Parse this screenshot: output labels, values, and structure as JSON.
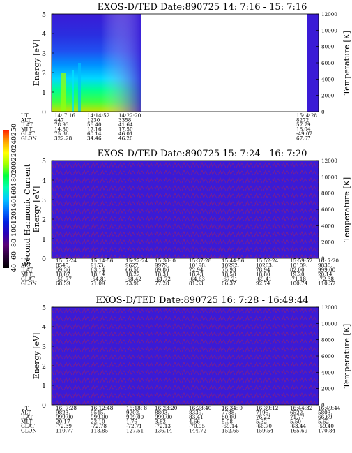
{
  "colors": {
    "plot_background": "#3a1bd6",
    "noise_red": "#c0203e",
    "colorbar_stops": [
      "#000000",
      "#2a0038",
      "#5a0078",
      "#2a00b8",
      "#0020e0",
      "#0070ff",
      "#00c8ff",
      "#00ffb0",
      "#00ff40",
      "#a0ff00",
      "#ffff00",
      "#ffa000",
      "#ff2000"
    ]
  },
  "colorbar": {
    "label": "Second Harmonic Current",
    "ticks": [
      "40",
      "60",
      "80",
      "100",
      "120",
      "140",
      "160",
      "180",
      "200",
      "220",
      "240",
      "250"
    ]
  },
  "chart_data": [
    {
      "type": "heatmap",
      "title": "EXOS-D/TED   Date:890725  14: 7:16 - 15: 7:16",
      "ylabel_left": "Energy [eV]",
      "ylabel_right": "Temperature [K]",
      "ylim_left": [
        0,
        5
      ],
      "ylim_right": [
        0,
        12000
      ],
      "yticks_left": [
        "0",
        "1",
        "2",
        "3",
        "4",
        "5"
      ],
      "yticks_right": [
        "0",
        "2000",
        "4000",
        "6000",
        "8000",
        "10000",
        "12000"
      ],
      "data_extent": "first ~26% of time range plus final column; gap in between",
      "orbit_rows": [
        {
          "label": "UT",
          "values": [
            "14: 7:16",
            "14:14:52",
            "14:22:20",
            "15: 4:28"
          ]
        },
        {
          "label": "ALT",
          "values": [
            "447",
            "1230",
            "3358",
            "8272"
          ]
        },
        {
          "label": "ILAT",
          "values": [
            "78.93",
            "56.40",
            "41.64",
            "57.79"
          ]
        },
        {
          "label": "MLT",
          "values": [
            "14.30",
            "17.16",
            "17.50",
            "18.04"
          ]
        },
        {
          "label": "GLAT",
          "values": [
            "75.36",
            "60.14",
            "46.01",
            "-49.07"
          ]
        },
        {
          "label": "GLON",
          "values": [
            "322.28",
            "34.46",
            "46.20",
            "67.67"
          ]
        }
      ]
    },
    {
      "type": "heatmap",
      "title": "EXOS-D/TED   Date:890725  15: 7:24 - 16: 7:20",
      "ylabel_left": "Energy [eV]",
      "ylabel_right": "Temperature [K]",
      "ylim_left": [
        0,
        5
      ],
      "ylim_right": [
        0,
        12000
      ],
      "yticks_left": [
        "0",
        "1",
        "2",
        "3",
        "4",
        "5"
      ],
      "yticks_right": [
        "0",
        "2000",
        "4000",
        "6000",
        "8000",
        "10000",
        "12000"
      ],
      "orbit_rows": [
        {
          "label": "UT",
          "values": [
            "15: 7:24",
            "15:14:56",
            "15:22:24",
            "15:30: 0",
            "15:37:28",
            "15:44:56",
            "15:52:24",
            "15:59:52",
            "16: 7:20"
          ]
        },
        {
          "label": "ALT",
          "values": [
            "8545.",
            "9153.",
            "9627.",
            "9979.",
            "10198.",
            "10292.",
            "10263.",
            "10109.",
            "9830."
          ]
        },
        {
          "label": "ILAT",
          "values": [
            "59.36",
            "63.14",
            "66.58",
            "69.86",
            "72.94",
            "75.93",
            "78.94",
            "82.00",
            "999.00"
          ]
        },
        {
          "label": "MLT",
          "values": [
            "18.07",
            "18.14",
            "18.22",
            "18.31",
            "18.43",
            "18.58",
            "18.80",
            "19.20",
            "20.14"
          ]
        },
        {
          "label": "GLAT",
          "values": [
            "-50.77",
            "-54.81",
            "-58.42",
            "-61.72",
            "-64.63",
            "-67.21",
            "-69.41",
            "-71.18",
            "-72.38"
          ]
        },
        {
          "label": "GLON",
          "values": [
            "68.59",
            "71.09",
            "73.90",
            "77.28",
            "81.33",
            "86.37",
            "92.74",
            "100.74",
            "110.57"
          ]
        }
      ]
    },
    {
      "type": "heatmap",
      "title": "EXOS-D/TED   Date:890725  16: 7:28 - 16:49:44",
      "ylabel_left": "Energy [eV]",
      "ylabel_right": "Temperature [K]",
      "ylim_left": [
        0,
        5
      ],
      "ylim_right": [
        0,
        12000
      ],
      "yticks_left": [
        "0",
        "1",
        "2",
        "3",
        "4",
        "5"
      ],
      "yticks_right": [
        "0",
        "2000",
        "4000",
        "6000",
        "8000",
        "10000",
        "12000"
      ],
      "orbit_rows": [
        {
          "label": "UT",
          "values": [
            "16: 7:28",
            "16:12:48",
            "16:18: 8",
            "16:23:20",
            "16:28:40",
            "16:34: 0",
            "16:39:12",
            "16:44:32",
            "16:49:44"
          ]
        },
        {
          "label": "ALT",
          "values": [
            "9823.",
            "9545.",
            "9202.",
            "8803.",
            "8339.",
            "7788.",
            "7195.",
            "6522.",
            "5803."
          ]
        },
        {
          "label": "ILAT",
          "values": [
            "999.00",
            "999.00",
            "999.00",
            "999.00",
            "83.41",
            "80.00",
            "76.22",
            "71.77",
            "66.69"
          ]
        },
        {
          "label": "MLT",
          "values": [
            "20.17",
            "22.10",
            "1.76",
            "3.82",
            "4.66",
            "5.08",
            "5.32",
            "5.50",
            "5.62"
          ]
        },
        {
          "label": "GLAT",
          "values": [
            "-72.39",
            "-72.78",
            "-72.71",
            "-72.13",
            "-70.95",
            "-69.14",
            "-66.70",
            "-63.44",
            "-59.40"
          ]
        },
        {
          "label": "GLON",
          "values": [
            "110.77",
            "118.85",
            "127.51",
            "136.14",
            "144.72",
            "152.65",
            "159.54",
            "165.69",
            "170.84"
          ]
        }
      ]
    }
  ]
}
